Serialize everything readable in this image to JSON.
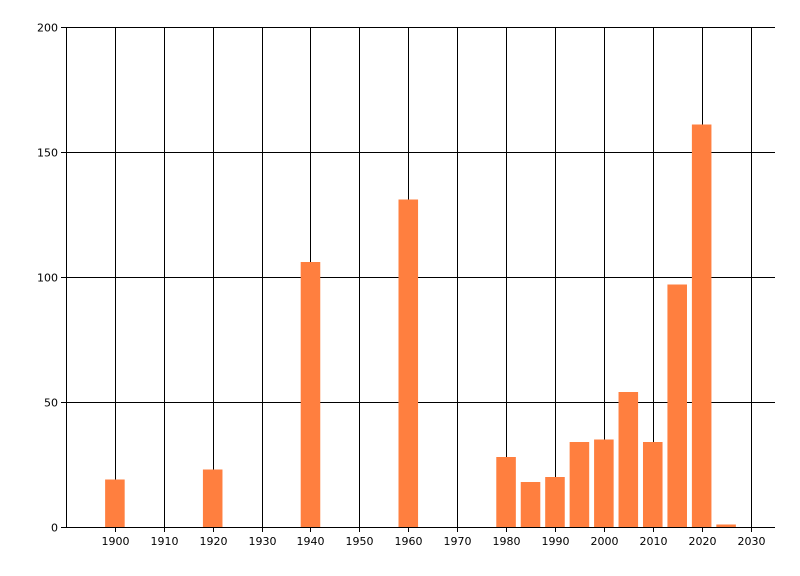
{
  "chart_data": {
    "type": "bar",
    "title": "",
    "xlabel": "",
    "ylabel": "",
    "xlim": [
      1890,
      2035
    ],
    "ylim": [
      0,
      200
    ],
    "x_ticks": [
      1900,
      1910,
      1920,
      1930,
      1940,
      1950,
      1960,
      1970,
      1980,
      1990,
      2000,
      2010,
      2020,
      2030
    ],
    "y_ticks": [
      0,
      50,
      100,
      150,
      200
    ],
    "grid": true,
    "bar_color": "#ff7f3f",
    "grid_color": "#000000",
    "bars": [
      {
        "x": 1900,
        "value": 19
      },
      {
        "x": 1920,
        "value": 23
      },
      {
        "x": 1940,
        "value": 106
      },
      {
        "x": 1960,
        "value": 131
      },
      {
        "x": 1980,
        "value": 28
      },
      {
        "x": 1985,
        "value": 18
      },
      {
        "x": 1990,
        "value": 20
      },
      {
        "x": 1995,
        "value": 34
      },
      {
        "x": 2000,
        "value": 35
      },
      {
        "x": 2005,
        "value": 54
      },
      {
        "x": 2010,
        "value": 34
      },
      {
        "x": 2015,
        "value": 97
      },
      {
        "x": 2020,
        "value": 161
      },
      {
        "x": 2025,
        "value": 1
      }
    ]
  }
}
